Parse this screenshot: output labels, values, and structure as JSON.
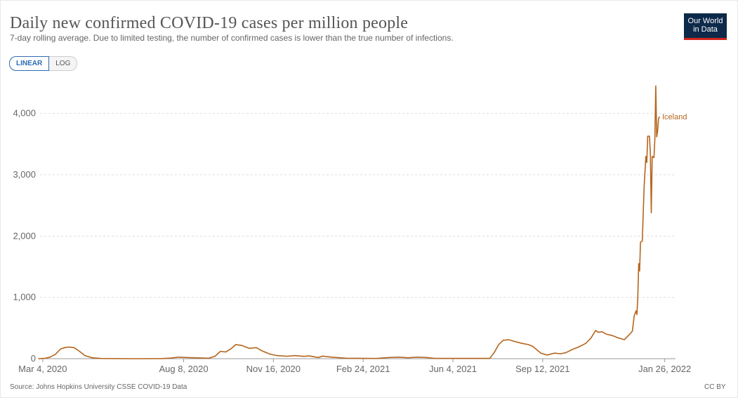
{
  "header": {
    "title": "Daily new confirmed COVID-19 cases per million people",
    "subtitle": "7-day rolling average. Due to limited testing, the number of confirmed cases is lower than the true number of infections."
  },
  "logo": {
    "line1": "Our World",
    "line2": "in Data"
  },
  "scale_toggle": {
    "linear": "LINEAR",
    "log": "LOG",
    "selected": "LINEAR"
  },
  "footer": {
    "source": "Source: Johns Hopkins University CSSE COVID-19 Data",
    "license": "CC BY"
  },
  "colors": {
    "series": "#b5651d",
    "grid": "#dddddd",
    "axis": "#999999",
    "logo_bg": "#0d2a4a",
    "logo_bar": "#ce261e",
    "toggle_active": "#2c6bb3"
  },
  "chart_data": {
    "type": "line",
    "title": "Daily new confirmed COVID-19 cases per million people",
    "xlabel": "",
    "ylabel": "",
    "ylim": [
      0,
      4500
    ],
    "xlim": [
      "2020-03-01",
      "2022-02-07"
    ],
    "y_ticks": [
      0,
      1000,
      2000,
      3000,
      4000
    ],
    "y_tick_labels": [
      "0",
      "1,000",
      "2,000",
      "3,000",
      "4,000"
    ],
    "x_ticks": [
      "2020-03-04",
      "2020-08-08",
      "2020-11-16",
      "2021-02-24",
      "2021-06-04",
      "2021-09-12",
      "2022-01-26"
    ],
    "x_tick_labels": [
      "Mar 4, 2020",
      "Aug 8, 2020",
      "Nov 16, 2020",
      "Feb 24, 2021",
      "Jun 4, 2021",
      "Sep 12, 2021",
      "Jan 26, 2022"
    ],
    "grid": true,
    "series": [
      {
        "name": "Iceland",
        "points": [
          [
            "2020-02-28",
            0
          ],
          [
            "2020-03-06",
            5
          ],
          [
            "2020-03-12",
            25
          ],
          [
            "2020-03-18",
            70
          ],
          [
            "2020-03-24",
            160
          ],
          [
            "2020-03-30",
            185
          ],
          [
            "2020-04-03",
            190
          ],
          [
            "2020-04-08",
            180
          ],
          [
            "2020-04-14",
            120
          ],
          [
            "2020-04-20",
            50
          ],
          [
            "2020-04-28",
            15
          ],
          [
            "2020-05-08",
            3
          ],
          [
            "2020-06-15",
            0
          ],
          [
            "2020-07-15",
            2
          ],
          [
            "2020-07-25",
            10
          ],
          [
            "2020-08-02",
            25
          ],
          [
            "2020-08-10",
            20
          ],
          [
            "2020-08-20",
            15
          ],
          [
            "2020-09-05",
            8
          ],
          [
            "2020-09-12",
            40
          ],
          [
            "2020-09-18",
            120
          ],
          [
            "2020-09-24",
            110
          ],
          [
            "2020-09-30",
            165
          ],
          [
            "2020-10-05",
            230
          ],
          [
            "2020-10-12",
            215
          ],
          [
            "2020-10-20",
            170
          ],
          [
            "2020-10-28",
            180
          ],
          [
            "2020-11-03",
            130
          ],
          [
            "2020-11-12",
            75
          ],
          [
            "2020-11-20",
            50
          ],
          [
            "2020-12-01",
            40
          ],
          [
            "2020-12-10",
            50
          ],
          [
            "2020-12-20",
            38
          ],
          [
            "2020-12-26",
            45
          ],
          [
            "2021-01-05",
            20
          ],
          [
            "2021-01-10",
            42
          ],
          [
            "2021-01-20",
            25
          ],
          [
            "2021-02-05",
            8
          ],
          [
            "2021-03-10",
            3
          ],
          [
            "2021-03-25",
            20
          ],
          [
            "2021-04-05",
            25
          ],
          [
            "2021-04-15",
            15
          ],
          [
            "2021-04-25",
            25
          ],
          [
            "2021-05-05",
            20
          ],
          [
            "2021-05-15",
            5
          ],
          [
            "2021-07-15",
            5
          ],
          [
            "2021-07-20",
            100
          ],
          [
            "2021-07-25",
            230
          ],
          [
            "2021-07-30",
            300
          ],
          [
            "2021-08-05",
            310
          ],
          [
            "2021-08-12",
            280
          ],
          [
            "2021-08-20",
            250
          ],
          [
            "2021-08-27",
            230
          ],
          [
            "2021-09-01",
            200
          ],
          [
            "2021-09-10",
            90
          ],
          [
            "2021-09-17",
            60
          ],
          [
            "2021-09-25",
            90
          ],
          [
            "2021-10-02",
            80
          ],
          [
            "2021-10-08",
            100
          ],
          [
            "2021-10-15",
            150
          ],
          [
            "2021-10-22",
            190
          ],
          [
            "2021-10-30",
            250
          ],
          [
            "2021-11-05",
            340
          ],
          [
            "2021-11-10",
            460
          ],
          [
            "2021-11-13",
            430
          ],
          [
            "2021-11-17",
            440
          ],
          [
            "2021-11-22",
            400
          ],
          [
            "2021-11-28",
            380
          ],
          [
            "2021-12-05",
            340
          ],
          [
            "2021-12-12",
            310
          ],
          [
            "2021-12-18",
            400
          ],
          [
            "2021-12-21",
            450
          ],
          [
            "2021-12-23",
            700
          ],
          [
            "2021-12-25",
            780
          ],
          [
            "2021-12-26",
            720
          ],
          [
            "2021-12-27",
            1000
          ],
          [
            "2021-12-28",
            1550
          ],
          [
            "2021-12-29",
            1430
          ],
          [
            "2021-12-30",
            1900
          ],
          [
            "2022-01-01",
            1920
          ],
          [
            "2022-01-03",
            2800
          ],
          [
            "2022-01-05",
            3300
          ],
          [
            "2022-01-06",
            3200
          ],
          [
            "2022-01-07",
            3630
          ],
          [
            "2022-01-09",
            3630
          ],
          [
            "2022-01-10",
            3350
          ],
          [
            "2022-01-11",
            2380
          ],
          [
            "2022-01-12",
            3300
          ],
          [
            "2022-01-14",
            3280
          ],
          [
            "2022-01-15",
            3580
          ],
          [
            "2022-01-16",
            4450
          ],
          [
            "2022-01-17",
            3620
          ],
          [
            "2022-01-18",
            3700
          ],
          [
            "2022-01-19",
            3900
          ],
          [
            "2022-01-20",
            3950
          ]
        ]
      }
    ]
  }
}
